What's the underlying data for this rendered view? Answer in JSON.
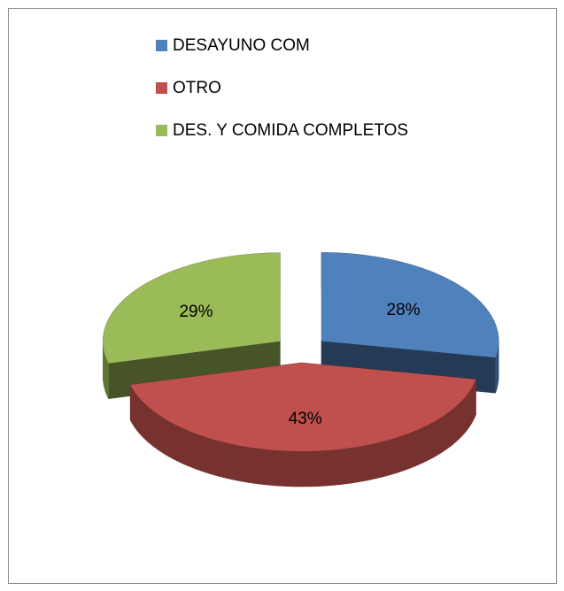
{
  "chart_data": {
    "type": "pie3d",
    "categories": [
      "DESAYUNO COM",
      "OTRO",
      "DES. Y COMIDA COMPLETOS"
    ],
    "values": [
      28,
      43,
      29
    ],
    "value_labels": [
      "28%",
      "43%",
      "29%"
    ],
    "colors": [
      "#4f81bd",
      "#c0504d",
      "#9bbb59"
    ],
    "legend": "top"
  }
}
